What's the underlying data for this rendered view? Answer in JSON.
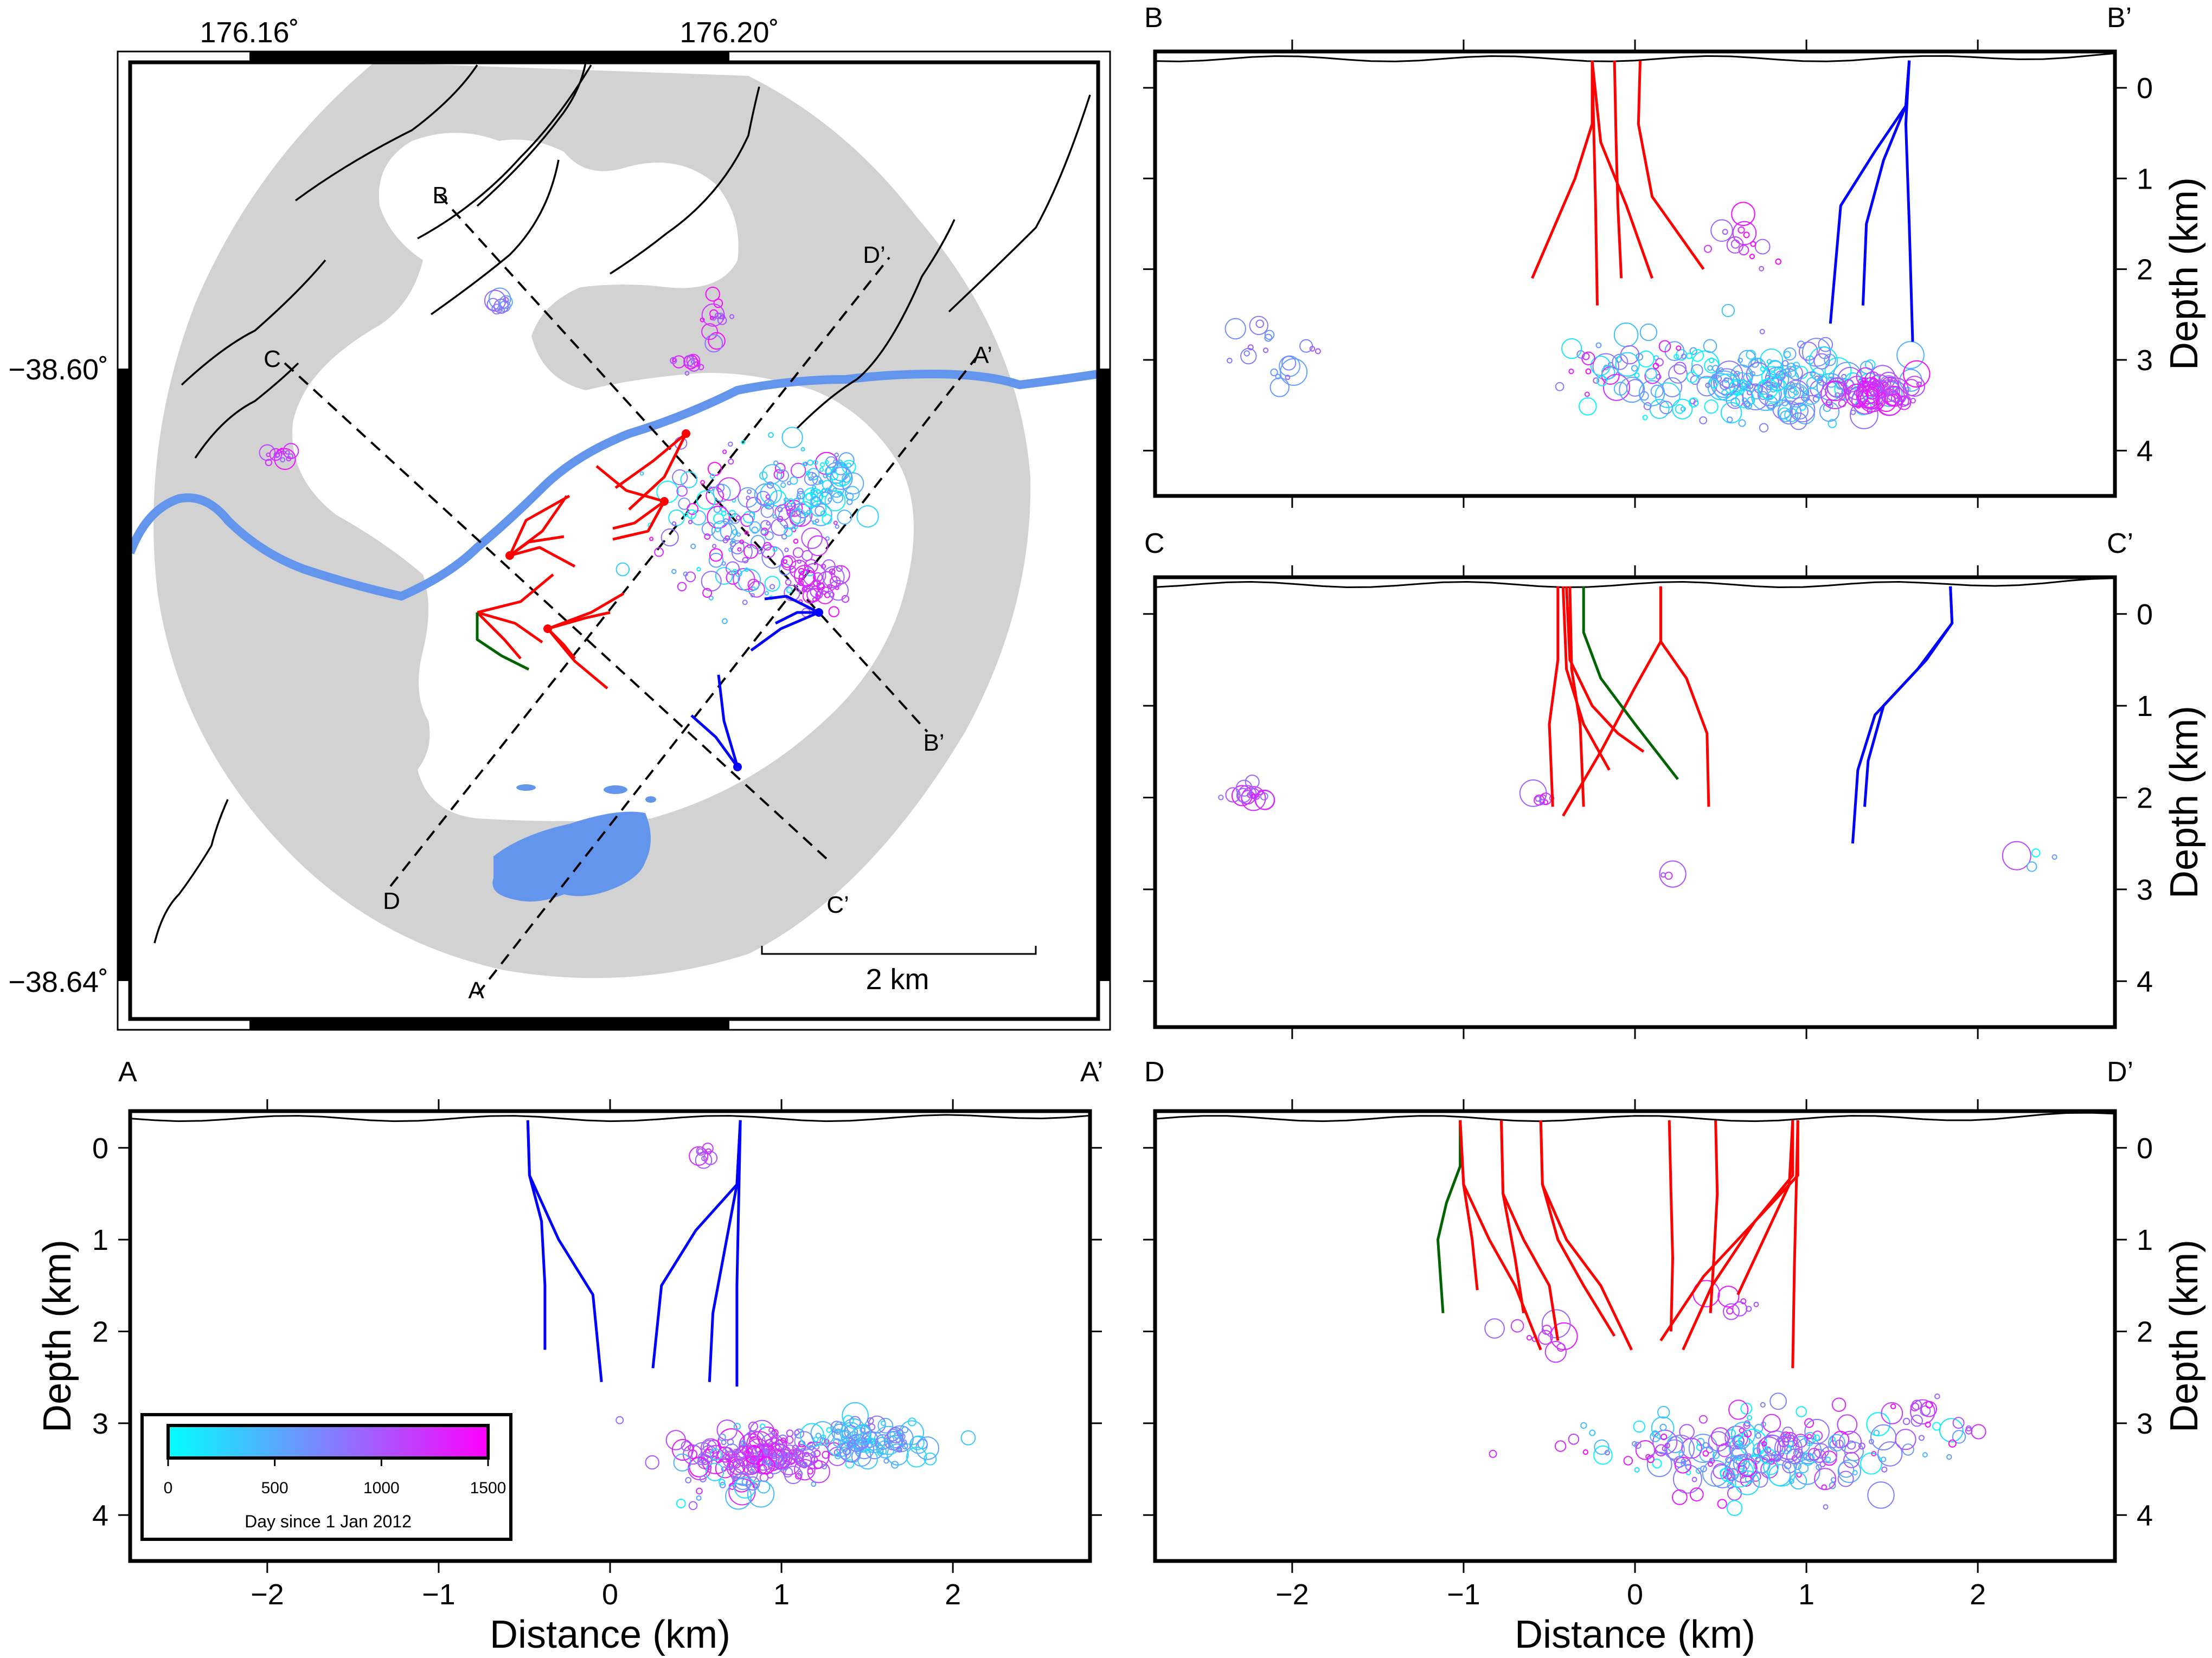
{
  "map": {
    "lon_labels": [
      "176.16˚",
      "176.20˚"
    ],
    "lat_labels": [
      "−38.60˚",
      "−38.64˚"
    ],
    "section_labels": [
      "A",
      "A’",
      "B",
      "B’",
      "C",
      "C’",
      "D",
      "D’"
    ],
    "scale_bar_label": "2 km"
  },
  "colorbar": {
    "label": "Day since 1 Jan 2012",
    "ticks": [
      "0",
      "500",
      "1000",
      "1500"
    ],
    "range": [
      0,
      1500
    ],
    "colors": [
      "#00ffff",
      "#ff00ff"
    ]
  },
  "colors": {
    "lake_river": "#6495ed",
    "caldera": "#d2d2d2",
    "well_red": "#ff0000",
    "well_blue": "#0000ff",
    "well_green": "#006400"
  },
  "panels": {
    "A": {
      "left": "A",
      "right": "A’"
    },
    "B": {
      "left": "B",
      "right": "B’"
    },
    "C": {
      "left": "C",
      "right": "C’"
    },
    "D": {
      "left": "D",
      "right": "D’"
    }
  },
  "axes": {
    "xlabel": "Distance (km)",
    "ylabel": "Depth (km)",
    "xticks": [
      "−2",
      "−1",
      "0",
      "1",
      "2"
    ],
    "yticks": [
      "0",
      "1",
      "2",
      "3",
      "4"
    ]
  },
  "chart_data": [
    {
      "type": "scatter",
      "panel": "A–A’ cross-section",
      "xlabel": "Distance (km)",
      "ylabel": "Depth (km)",
      "xlim": [
        -2.8,
        2.8
      ],
      "ylim": [
        4.5,
        -0.4
      ],
      "wells": [
        {
          "color": "blue",
          "x": [
            -0.48,
            -0.47,
            -0.4,
            -0.38,
            -0.38
          ],
          "y": [
            -0.3,
            0.3,
            0.8,
            1.5,
            2.2
          ]
        },
        {
          "color": "blue",
          "x": [
            -0.48,
            -0.47,
            -0.3,
            -0.1,
            -0.05
          ],
          "y": [
            -0.3,
            0.3,
            1.0,
            1.6,
            2.55
          ]
        },
        {
          "color": "blue",
          "x": [
            0.76,
            0.74,
            0.5,
            0.3,
            0.25
          ],
          "y": [
            -0.3,
            0.4,
            0.9,
            1.5,
            2.4
          ]
        },
        {
          "color": "blue",
          "x": [
            0.76,
            0.74,
            0.68,
            0.6,
            0.58
          ],
          "y": [
            -0.3,
            0.4,
            1.0,
            1.8,
            2.55
          ]
        },
        {
          "color": "blue",
          "x": [
            0.76,
            0.75,
            0.74,
            0.74
          ],
          "y": [
            -0.3,
            0.6,
            1.5,
            2.6
          ]
        }
      ],
      "clusters": [
        {
          "x": 0.9,
          "y": 3.35,
          "spread_km": [
            0.35,
            0.2
          ],
          "count": 150,
          "days": [
            700,
            1500
          ]
        },
        {
          "x": 1.5,
          "y": 3.2,
          "spread_km": [
            0.3,
            0.18
          ],
          "count": 110,
          "days": [
            100,
            900
          ]
        },
        {
          "x": 0.6,
          "y": 3.5,
          "spread_km": [
            0.4,
            0.35
          ],
          "count": 40,
          "days": [
            0,
            1500
          ]
        },
        {
          "x": 0.55,
          "y": 0.1,
          "spread_km": [
            0.06,
            0.1
          ],
          "count": 8,
          "days": [
            900,
            1500
          ]
        }
      ]
    },
    {
      "type": "scatter",
      "panel": "B–B’ cross-section",
      "xlabel": "",
      "ylabel": "Depth (km)",
      "xlim": [
        -2.8,
        2.8
      ],
      "ylim": [
        4.5,
        -0.4
      ],
      "wells": [
        {
          "color": "red",
          "x": [
            -0.25,
            -0.25,
            -0.35,
            -0.6
          ],
          "y": [
            -0.3,
            0.4,
            1.0,
            2.1
          ]
        },
        {
          "color": "red",
          "x": [
            -0.25,
            -0.24,
            -0.23,
            -0.22
          ],
          "y": [
            -0.3,
            0.5,
            1.3,
            2.4
          ]
        },
        {
          "color": "red",
          "x": [
            -0.25,
            -0.2,
            -0.05,
            0.1
          ],
          "y": [
            -0.3,
            0.6,
            1.3,
            2.1
          ]
        },
        {
          "color": "red",
          "x": [
            -0.12,
            -0.11,
            -0.1,
            -0.08
          ],
          "y": [
            -0.3,
            0.6,
            1.3,
            2.1
          ]
        },
        {
          "color": "red",
          "x": [
            0.03,
            0.02,
            0.1,
            0.4
          ],
          "y": [
            -0.3,
            0.4,
            1.2,
            2.0
          ]
        },
        {
          "color": "blue",
          "x": [
            1.6,
            1.58,
            1.4,
            1.2,
            1.14
          ],
          "y": [
            -0.3,
            0.2,
            0.7,
            1.3,
            2.6
          ]
        },
        {
          "color": "blue",
          "x": [
            1.6,
            1.58,
            1.45,
            1.35,
            1.33
          ],
          "y": [
            -0.3,
            0.2,
            0.8,
            1.5,
            2.4
          ]
        },
        {
          "color": "blue",
          "x": [
            1.6,
            1.58,
            1.6,
            1.62
          ],
          "y": [
            -0.3,
            0.4,
            1.5,
            2.8
          ]
        }
      ],
      "clusters": [
        {
          "x": 0.75,
          "y": 3.3,
          "spread_km": [
            0.6,
            0.35
          ],
          "count": 200,
          "days": [
            0,
            900
          ]
        },
        {
          "x": 1.4,
          "y": 3.35,
          "spread_km": [
            0.2,
            0.15
          ],
          "count": 70,
          "days": [
            900,
            1500
          ]
        },
        {
          "x": -0.1,
          "y": 3.1,
          "spread_km": [
            0.35,
            0.3
          ],
          "count": 40,
          "days": [
            0,
            1500
          ]
        },
        {
          "x": -2.1,
          "y": 3.0,
          "spread_km": [
            0.25,
            0.3
          ],
          "count": 20,
          "days": [
            500,
            1200
          ]
        },
        {
          "x": 0.6,
          "y": 1.7,
          "spread_km": [
            0.15,
            0.3
          ],
          "count": 15,
          "days": [
            900,
            1500
          ]
        }
      ]
    },
    {
      "type": "scatter",
      "panel": "C–C’ cross-section",
      "xlabel": "",
      "ylabel": "Depth (km)",
      "xlim": [
        -2.8,
        2.8
      ],
      "ylim": [
        4.5,
        -0.4
      ],
      "wells": [
        {
          "color": "red",
          "x": [
            -0.45,
            -0.45,
            -0.5,
            -0.48
          ],
          "y": [
            -0.3,
            0.5,
            1.2,
            2.1
          ]
        },
        {
          "color": "red",
          "x": [
            -0.42,
            -0.4,
            -0.3,
            -0.15
          ],
          "y": [
            -0.3,
            0.6,
            1.2,
            1.7
          ]
        },
        {
          "color": "red",
          "x": [
            -0.4,
            -0.38,
            -0.25,
            -0.1,
            0.05
          ],
          "y": [
            -0.3,
            0.5,
            1.0,
            1.3,
            1.5
          ]
        },
        {
          "color": "red",
          "x": [
            -0.38,
            -0.37,
            -0.32,
            -0.3
          ],
          "y": [
            -0.3,
            0.6,
            1.2,
            2.1
          ]
        },
        {
          "color": "red",
          "x": [
            0.15,
            0.15,
            0.0,
            -0.2,
            -0.42
          ],
          "y": [
            -0.3,
            0.3,
            0.8,
            1.5,
            2.2
          ]
        },
        {
          "color": "red",
          "x": [
            0.15,
            0.15,
            0.3,
            0.42,
            0.43
          ],
          "y": [
            -0.3,
            0.3,
            0.7,
            1.3,
            2.1
          ]
        },
        {
          "color": "green",
          "x": [
            -0.3,
            -0.3,
            -0.2,
            0.0,
            0.25
          ],
          "y": [
            -0.3,
            0.2,
            0.7,
            1.2,
            1.8
          ]
        },
        {
          "color": "blue",
          "x": [
            1.84,
            1.85,
            1.7,
            1.45,
            1.36,
            1.34
          ],
          "y": [
            -0.3,
            0.1,
            0.5,
            1.0,
            1.6,
            2.1
          ]
        },
        {
          "color": "blue",
          "x": [
            1.84,
            1.85,
            1.65,
            1.4,
            1.3,
            1.27
          ],
          "y": [
            -0.3,
            0.1,
            0.6,
            1.1,
            1.7,
            2.5
          ]
        }
      ],
      "clusters": [
        {
          "x": -2.2,
          "y": 1.98,
          "spread_km": [
            0.12,
            0.08
          ],
          "count": 18,
          "days": [
            800,
            1500
          ]
        },
        {
          "x": -0.55,
          "y": 2.0,
          "spread_km": [
            0.06,
            0.05
          ],
          "count": 8,
          "days": [
            900,
            1500
          ]
        },
        {
          "x": 0.2,
          "y": 2.85,
          "spread_km": [
            0.05,
            0.05
          ],
          "count": 3,
          "days": [
            900,
            1500
          ]
        },
        {
          "x": 2.3,
          "y": 2.65,
          "spread_km": [
            0.15,
            0.15
          ],
          "count": 4,
          "days": [
            0,
            1500
          ]
        }
      ]
    },
    {
      "type": "scatter",
      "panel": "D–D’ cross-section",
      "xlabel": "Distance (km)",
      "ylabel": "Depth (km)",
      "xlim": [
        -2.8,
        2.8
      ],
      "ylim": [
        4.5,
        -0.4
      ],
      "wells": [
        {
          "color": "green",
          "x": [
            -1.02,
            -1.02,
            -1.1,
            -1.15,
            -1.12
          ],
          "y": [
            -0.3,
            0.2,
            0.6,
            1.0,
            1.8
          ]
        },
        {
          "color": "red",
          "x": [
            -1.02,
            -1.0,
            -0.95,
            -0.92
          ],
          "y": [
            -0.3,
            0.4,
            1.0,
            1.55
          ]
        },
        {
          "color": "red",
          "x": [
            -1.02,
            -1.0,
            -0.85,
            -0.7,
            -0.55
          ],
          "y": [
            -0.3,
            0.4,
            1.0,
            1.5,
            2.2
          ]
        },
        {
          "color": "red",
          "x": [
            -0.78,
            -0.77,
            -0.65,
            -0.5,
            -0.45
          ],
          "y": [
            -0.3,
            0.5,
            1.0,
            1.5,
            2.1
          ]
        },
        {
          "color": "red",
          "x": [
            -0.78,
            -0.77,
            -0.7,
            -0.65
          ],
          "y": [
            -0.3,
            0.5,
            1.2,
            1.8
          ]
        },
        {
          "color": "red",
          "x": [
            -0.55,
            -0.54,
            -0.4,
            -0.2,
            -0.02
          ],
          "y": [
            -0.3,
            0.4,
            1.0,
            1.5,
            2.2
          ]
        },
        {
          "color": "red",
          "x": [
            -0.55,
            -0.54,
            -0.45,
            -0.3,
            -0.12
          ],
          "y": [
            -0.3,
            0.4,
            1.0,
            1.5,
            2.05
          ]
        },
        {
          "color": "red",
          "x": [
            0.2,
            0.21,
            0.22,
            0.21
          ],
          "y": [
            -0.3,
            0.5,
            1.2,
            2.0
          ]
        },
        {
          "color": "red",
          "x": [
            0.47,
            0.48,
            0.46,
            0.44
          ],
          "y": [
            -0.3,
            0.5,
            1.2,
            1.8
          ]
        },
        {
          "color": "red",
          "x": [
            0.92,
            0.92,
            0.7,
            0.4,
            0.15
          ],
          "y": [
            -0.3,
            0.3,
            0.8,
            1.4,
            2.1
          ]
        },
        {
          "color": "red",
          "x": [
            0.95,
            0.95,
            0.7,
            0.45,
            0.28
          ],
          "y": [
            -0.3,
            0.3,
            0.8,
            1.5,
            2.2
          ]
        },
        {
          "color": "red",
          "x": [
            0.95,
            0.94,
            0.93,
            0.92
          ],
          "y": [
            -0.3,
            0.5,
            1.3,
            2.4
          ]
        },
        {
          "color": "red",
          "x": [
            0.92,
            0.9,
            0.75,
            0.6
          ],
          "y": [
            -0.3,
            0.4,
            1.0,
            1.6
          ]
        }
      ],
      "clusters": [
        {
          "x": 0.75,
          "y": 3.3,
          "spread_km": [
            0.7,
            0.35
          ],
          "count": 220,
          "days": [
            0,
            1500
          ]
        },
        {
          "x": -0.6,
          "y": 2.05,
          "spread_km": [
            0.15,
            0.15
          ],
          "count": 10,
          "days": [
            900,
            1500
          ]
        },
        {
          "x": 0.55,
          "y": 1.7,
          "spread_km": [
            0.1,
            0.15
          ],
          "count": 8,
          "days": [
            900,
            1500
          ]
        },
        {
          "x": 1.7,
          "y": 3.0,
          "spread_km": [
            0.3,
            0.25
          ],
          "count": 20,
          "days": [
            800,
            1500
          ]
        }
      ]
    }
  ]
}
